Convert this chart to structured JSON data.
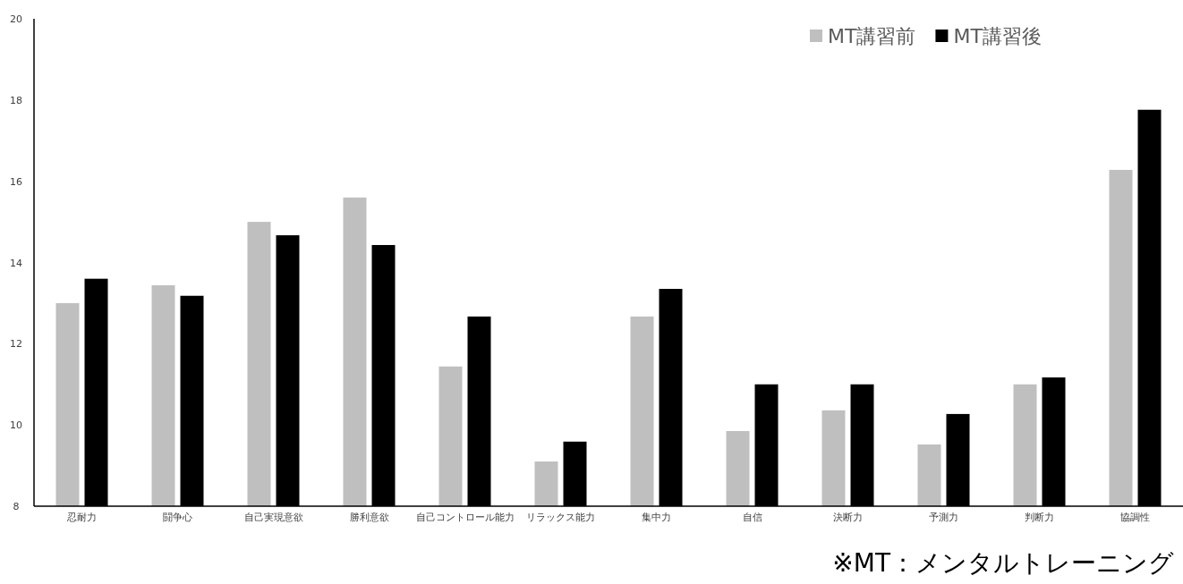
{
  "chart_data": {
    "type": "bar",
    "categories": [
      "忍耐力",
      "闘争心",
      "自己実現意欲",
      "勝利意欲",
      "自己コントロール能力",
      "リラックス能力",
      "集中力",
      "自信",
      "決断力",
      "予測力",
      "判断力",
      "協調性"
    ],
    "series": [
      {
        "name": "MT講習前",
        "color": "#bfbfbf",
        "values": [
          13.0,
          13.44,
          15.0,
          15.6,
          11.44,
          9.1,
          12.67,
          9.85,
          10.36,
          9.52,
          11.0,
          16.28
        ]
      },
      {
        "name": "MT講習後",
        "color": "#000000",
        "values": [
          13.6,
          13.18,
          14.67,
          14.43,
          12.67,
          9.59,
          13.35,
          11.0,
          11.0,
          10.27,
          11.17,
          17.76
        ]
      }
    ],
    "ylim": [
      8,
      20
    ],
    "yticks": [
      8,
      10,
      12,
      14,
      16,
      18,
      20
    ],
    "legend": "top right",
    "annotations": [
      "※MT：メンタルトレーニング"
    ]
  }
}
